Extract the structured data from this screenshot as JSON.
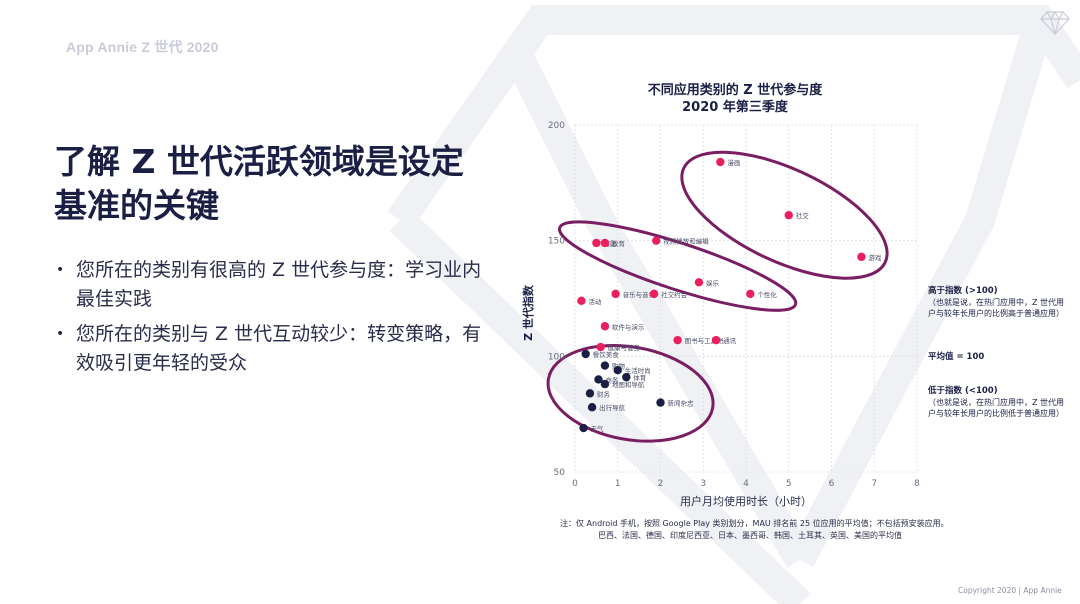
{
  "brand": "App Annie Z 世代 2020",
  "title_lines": [
    "了解 Z 世代活跃领域是设定",
    "基准的关键"
  ],
  "bullets": [
    "您所在的类别有很高的 Z 世代参与度：学习业内最佳实践",
    "您所在的类别与 Z 世代互动较少：转变策略，有效吸引更年轻的受众"
  ],
  "chart_title": "不同应用类别的 Z 世代参与度",
  "chart_subtitle": "2020 年第三季度",
  "side_notes": {
    "above": {
      "head": "高于指数 (>100)",
      "body": "（也就是说，在热门应用中，Z 世代用户与较年长用户的比例高于普通应用）"
    },
    "avg": {
      "head": "平均值 = 100",
      "body": ""
    },
    "below": {
      "head": "低于指数 (<100)",
      "body": "（也就是说，在热门应用中，Z 世代用户与较年长用户的比例低于普通应用）"
    }
  },
  "footnote_line1": "注：仅 Android 手机，按照 Google Play 类别划分，MAU 排名前 25 位应用的平均值；不包括预安装应用。",
  "footnote_line2": "巴西、法国、德国、印度尼西亚、日本、墨西哥、韩国、土耳其、英国、美国的平均值",
  "copyright": "Copyright 2020 | App Annie",
  "colors": {
    "high": "#ec1f5e",
    "low": "#1b1f44",
    "ellipse": "#7a1e63",
    "grid": "#dcdde3"
  },
  "chart_data": {
    "type": "scatter",
    "xlabel": "用户月均使用时长（小时）",
    "ylabel": "Z 世代指数",
    "xlim": [
      0,
      8
    ],
    "ylim": [
      50,
      200
    ],
    "x_ticks": [
      "0",
      "1",
      "2",
      "3",
      "4",
      "5",
      "6",
      "7",
      "8"
    ],
    "y_ticks": [
      "50",
      "100",
      "150",
      "200"
    ],
    "series": [
      {
        "group": "high",
        "points": [
          {
            "label": "漫画",
            "x": 3.4,
            "y": 184
          },
          {
            "label": "社交",
            "x": 5.0,
            "y": 161
          },
          {
            "label": "游戏",
            "x": 6.7,
            "y": 143
          },
          {
            "label": "摄影",
            "x": 0.5,
            "y": 149
          },
          {
            "label": "教育",
            "x": 0.7,
            "y": 149
          },
          {
            "label": "视频播放和编辑",
            "x": 1.9,
            "y": 150
          },
          {
            "label": "娱乐",
            "x": 2.9,
            "y": 132
          },
          {
            "label": "音乐与音频",
            "x": 0.95,
            "y": 127
          },
          {
            "label": "社交约会",
            "x": 1.85,
            "y": 127
          },
          {
            "label": "个性化",
            "x": 4.1,
            "y": 127
          },
          {
            "label": "活动",
            "x": 0.15,
            "y": 124
          },
          {
            "label": "软件与演示",
            "x": 0.7,
            "y": 113
          },
          {
            "label": "健康与健身",
            "x": 0.6,
            "y": 104
          },
          {
            "label": "图书与工具书",
            "x": 2.4,
            "y": 107
          },
          {
            "label": "通讯",
            "x": 3.3,
            "y": 107
          }
        ]
      },
      {
        "group": "low",
        "points": [
          {
            "label": "餐饮美食",
            "x": 0.25,
            "y": 101
          },
          {
            "label": "购物",
            "x": 0.7,
            "y": 96
          },
          {
            "label": "生活时尚",
            "x": 1.0,
            "y": 94
          },
          {
            "label": "体育",
            "x": 1.2,
            "y": 91
          },
          {
            "label": "商务",
            "x": 0.55,
            "y": 90
          },
          {
            "label": "地图和导航",
            "x": 0.7,
            "y": 88
          },
          {
            "label": "财务",
            "x": 0.35,
            "y": 84
          },
          {
            "label": "新闻杂志",
            "x": 2.0,
            "y": 80
          },
          {
            "label": "出行导航",
            "x": 0.4,
            "y": 78
          },
          {
            "label": "天气",
            "x": 0.2,
            "y": 69
          }
        ]
      }
    ]
  }
}
